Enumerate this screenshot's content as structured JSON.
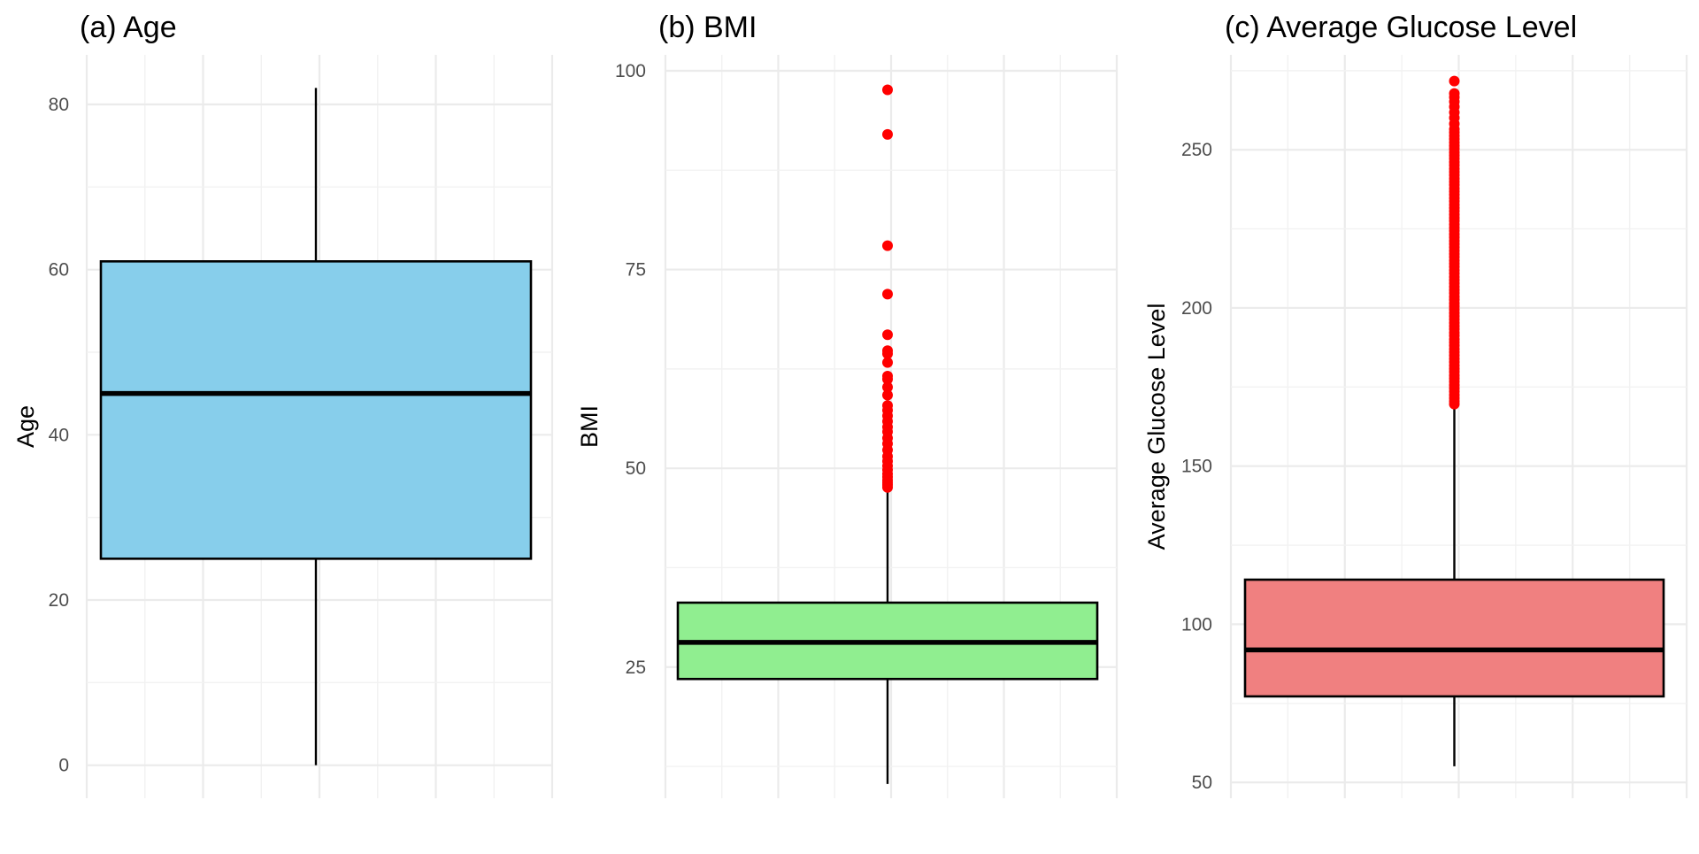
{
  "chart_data": [
    {
      "type": "boxplot",
      "title": "(a) Age",
      "xlabel": "",
      "ylabel": "Age",
      "ylim": [
        -4,
        86
      ],
      "yticks": [
        0,
        20,
        40,
        60,
        80
      ],
      "fill": "#87CEEB",
      "outlier_color": "#FF0000",
      "box": {
        "min": 0,
        "q1": 25,
        "median": 45,
        "q3": 61,
        "max": 82,
        "outliers": []
      }
    },
    {
      "type": "boxplot",
      "title": "(b) BMI",
      "xlabel": "",
      "ylabel": "BMI",
      "ylim": [
        8.5,
        102
      ],
      "yticks": [
        25,
        50,
        75,
        100
      ],
      "fill": "#90EE90",
      "outlier_color": "#FF0000",
      "box": {
        "min": 10.3,
        "q1": 23.5,
        "median": 28.1,
        "q3": 33.1,
        "max": 47.5,
        "outliers": [
          47.6,
          47.9,
          48.2,
          48.5,
          48.9,
          49.3,
          49.8,
          50.3,
          50.9,
          51.5,
          52.3,
          53.1,
          53.8,
          54.6,
          55.2,
          55.9,
          56.6,
          57.3,
          57.9,
          59.2,
          60.2,
          61.2,
          61.6,
          63.3,
          64.4,
          64.8,
          66.8,
          71.9,
          78.0,
          92.0,
          97.6
        ]
      }
    },
    {
      "type": "boxplot",
      "title": "(c) Average Glucose Level",
      "xlabel": "",
      "ylabel": "Average Glucose Level",
      "ylim": [
        45,
        280
      ],
      "yticks": [
        50,
        100,
        150,
        200,
        250
      ],
      "fill": "#F08080",
      "outlier_color": "#FF0000",
      "box": {
        "min": 55.1,
        "q1": 77.2,
        "median": 91.9,
        "q3": 114.1,
        "max": 169.4,
        "outliers": [
          169.6,
          170.5,
          171.5,
          172.5,
          173.6,
          174.6,
          175.6,
          176.7,
          177.7,
          178.7,
          179.8,
          180.8,
          181.8,
          182.9,
          183.9,
          185,
          186,
          187,
          188.1,
          189.1,
          190.1,
          191.2,
          192.2,
          193.3,
          194.3,
          195.3,
          196.4,
          197.4,
          198.4,
          199.5,
          200.5,
          201.5,
          202.6,
          203.6,
          204.7,
          205.7,
          206.7,
          207.8,
          208.8,
          209.8,
          210.9,
          211.9,
          213,
          214,
          215,
          216.1,
          217.1,
          218.1,
          219.2,
          220.2,
          221.2,
          222.3,
          223.3,
          224.4,
          225.4,
          226.4,
          227.5,
          228.5,
          229.5,
          230.6,
          231.6,
          232.6,
          233.7,
          234.7,
          235.8,
          236.8,
          237.8,
          238.9,
          239.9,
          240.9,
          242,
          243,
          244,
          245.1,
          246.1,
          247.2,
          248.2,
          249.2,
          250.3,
          251.3,
          252.3,
          253.4,
          254.4,
          255.5,
          256.5,
          258.2,
          260.1,
          261.8,
          263.6,
          265.2,
          266.6,
          267.8,
          271.7
        ]
      }
    }
  ]
}
